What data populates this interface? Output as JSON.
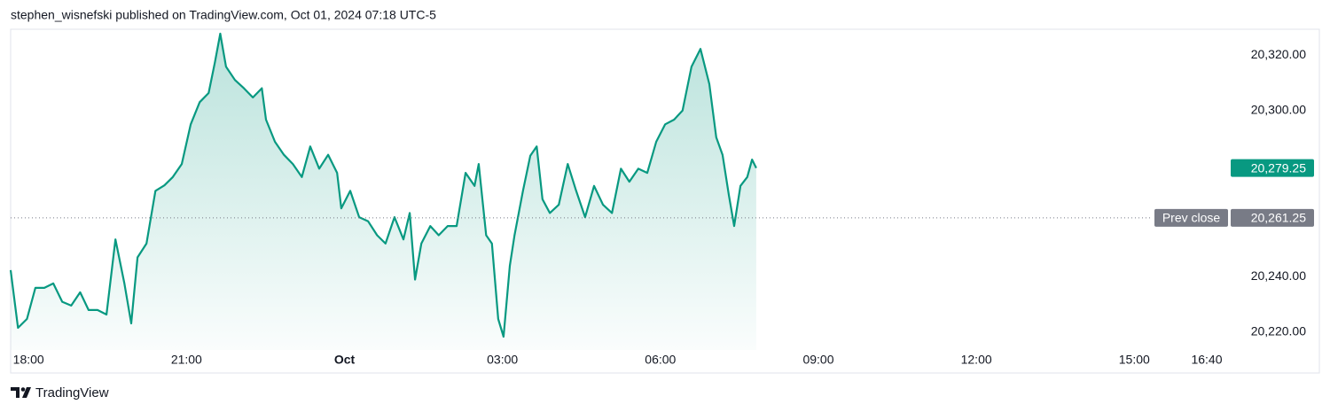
{
  "chart_data": {
    "type": "line",
    "attribution": "stephen_wisnefski published on TradingView.com, Oct 01, 2024 07:18 UTC-5",
    "brand": "TradingView",
    "color": "#089981",
    "x": [
      -0.34,
      -0.2,
      -0.03,
      0.13,
      0.3,
      0.47,
      0.64,
      0.81,
      0.98,
      1.14,
      1.31,
      1.48,
      1.65,
      1.82,
      1.95,
      2.07,
      2.24,
      2.41,
      2.58,
      2.74,
      2.91,
      3.08,
      3.25,
      3.42,
      3.54,
      3.64,
      3.75,
      3.92,
      4.09,
      4.26,
      4.43,
      4.51,
      4.68,
      4.85,
      5.02,
      5.19,
      5.35,
      5.52,
      5.69,
      5.86,
      5.94,
      6.11,
      6.28,
      6.45,
      6.62,
      6.78,
      6.95,
      7.12,
      7.24,
      7.34,
      7.46,
      7.63,
      7.79,
      7.96,
      8.13,
      8.3,
      8.47,
      8.55,
      8.69,
      8.8,
      8.92,
      9.02,
      9.14,
      9.23,
      9.39,
      9.53,
      9.65,
      9.76,
      9.9,
      10.07,
      10.24,
      10.4,
      10.57,
      10.74,
      10.91,
      11.08,
      11.25,
      11.41,
      11.58,
      11.75,
      11.92,
      12.09,
      12.26,
      12.42,
      12.59,
      12.76,
      12.93,
      13.06,
      13.18,
      13.3,
      13.4,
      13.52,
      13.65,
      13.74,
      13.82
    ],
    "values": [
      20242.4,
      20221.6,
      20224.8,
      20236,
      20236,
      20237.6,
      20231,
      20229.6,
      20234.4,
      20228,
      20228,
      20226.4,
      20253.5,
      20237.6,
      20223.2,
      20247,
      20252,
      20271,
      20273,
      20276,
      20280.7,
      20295,
      20303,
      20306.3,
      20317.4,
      20327.7,
      20315.8,
      20311,
      20308,
      20304.7,
      20308,
      20296.7,
      20288.7,
      20284,
      20280.7,
      20276,
      20287,
      20279,
      20284,
      20277.5,
      20264.7,
      20271,
      20261.5,
      20260,
      20255,
      20252,
      20261.5,
      20253.5,
      20263,
      20239,
      20252,
      20258.3,
      20255,
      20258.3,
      20258.3,
      20277.5,
      20272.8,
      20280.7,
      20255,
      20252,
      20224.8,
      20218.4,
      20244,
      20255,
      20271,
      20283.7,
      20287,
      20268,
      20263,
      20266,
      20280.7,
      20271,
      20261.5,
      20272.8,
      20266,
      20263,
      20279,
      20274.3,
      20279,
      20277.5,
      20288.7,
      20295,
      20296.7,
      20300,
      20315.8,
      20322.2,
      20309.5,
      20290.3,
      20284,
      20269.5,
      20258.3,
      20272.8,
      20276,
      20282.3,
      20279.25
    ],
    "xlim": [
      -0.34,
      22.78
    ],
    "xticks": [
      {
        "value": 0,
        "label": "18:00"
      },
      {
        "value": 3,
        "label": "21:00"
      },
      {
        "value": 6,
        "label": "Oct"
      },
      {
        "value": 9,
        "label": "03:00"
      },
      {
        "value": 12,
        "label": "06:00"
      },
      {
        "value": 15,
        "label": "09:00"
      },
      {
        "value": 18,
        "label": "12:00"
      },
      {
        "value": 21,
        "label": "15:00"
      },
      {
        "value": 22.67,
        "label": "16:40"
      }
    ],
    "ylim": [
      20213.6,
      20329.3
    ],
    "yticks": [
      {
        "value": 20220,
        "label": "20,220.00"
      },
      {
        "value": 20240,
        "label": "20,240.00"
      },
      {
        "value": 20300,
        "label": "20,300.00"
      },
      {
        "value": 20320,
        "label": "20,320.00"
      }
    ],
    "last_price": {
      "value": 20279.25,
      "label": "20,279.25"
    },
    "prev_close": {
      "name": "Prev close",
      "value": 20261.25,
      "label": "20,261.25"
    }
  }
}
